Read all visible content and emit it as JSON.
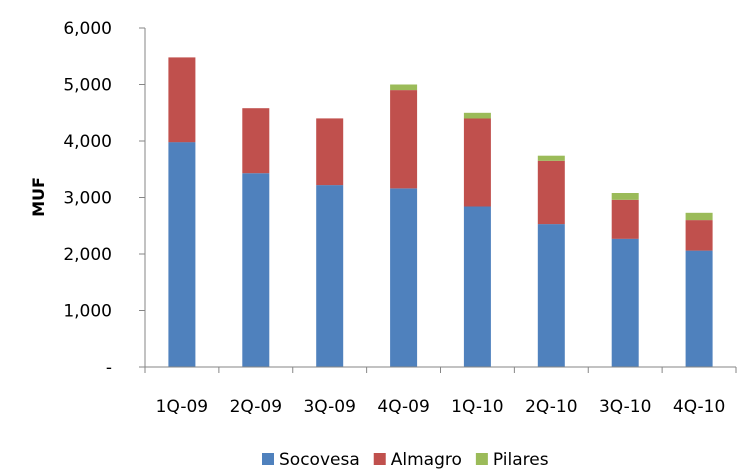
{
  "chart_data": {
    "type": "bar",
    "stacked": true,
    "categories": [
      "1Q-09",
      "2Q-09",
      "3Q-09",
      "4Q-09",
      "1Q-10",
      "2Q-10",
      "3Q-10",
      "4Q-10"
    ],
    "series": [
      {
        "name": "Socovesa",
        "color": "#4F81BD",
        "values": [
          3980,
          3430,
          3220,
          3160,
          2840,
          2530,
          2270,
          2060
        ]
      },
      {
        "name": "Almagro",
        "color": "#C0504D",
        "values": [
          1500,
          1150,
          1180,
          1740,
          1560,
          1120,
          690,
          540
        ]
      },
      {
        "name": "Pilares",
        "color": "#9BBB59",
        "values": [
          0,
          0,
          0,
          100,
          100,
          90,
          120,
          130
        ]
      }
    ],
    "ylabel": "MUF",
    "xlabel": "",
    "ylim": [
      0,
      6000
    ],
    "yticks": [
      {
        "value": 0,
        "label": "-"
      },
      {
        "value": 1000,
        "label": "1,000"
      },
      {
        "value": 2000,
        "label": "2,000"
      },
      {
        "value": 3000,
        "label": "3,000"
      },
      {
        "value": 4000,
        "label": "4,000"
      },
      {
        "value": 5000,
        "label": "5,000"
      },
      {
        "value": 6000,
        "label": "6,000"
      }
    ],
    "grid": false,
    "legend_position": "bottom"
  }
}
